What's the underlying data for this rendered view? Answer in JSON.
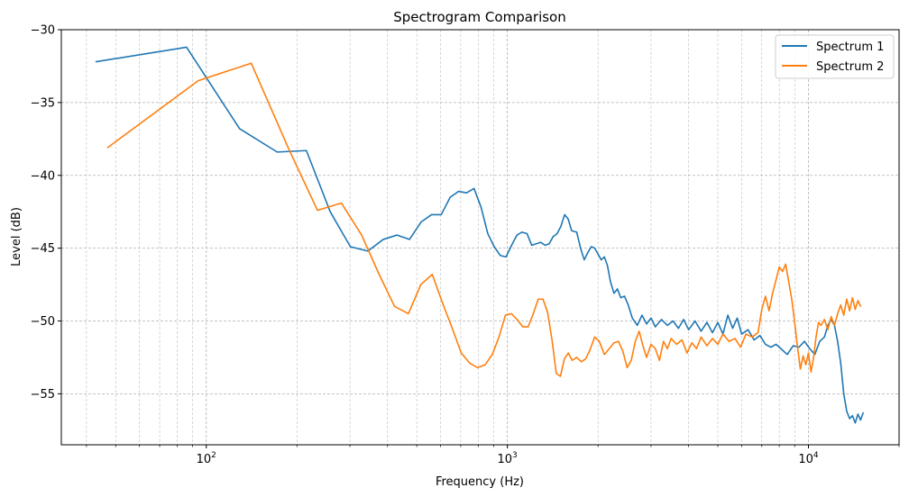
{
  "chart_data": {
    "type": "line",
    "title": "Spectrogram Comparison",
    "xlabel": "Frequency (Hz)",
    "ylabel": "Level (dB)",
    "xscale": "log",
    "xlim": [
      33,
      20000
    ],
    "ylim": [
      -58.5,
      -30
    ],
    "grid": true,
    "grid_style": "dashed-major-and-minor",
    "legend_position": "top-right",
    "y_ticks": [
      -30,
      -35,
      -40,
      -45,
      -50,
      -55
    ],
    "y_tick_labels": [
      "−30",
      "−35",
      "−40",
      "−45",
      "−50",
      "−55"
    ],
    "x_ticks": [
      100,
      1000,
      10000
    ],
    "x_tick_labels": [
      {
        "base": "10",
        "exp": "2"
      },
      {
        "base": "10",
        "exp": "3"
      },
      {
        "base": "10",
        "exp": "4"
      }
    ],
    "series": [
      {
        "name": "Spectrum 1",
        "color": "#1f77b4",
        "points": [
          [
            43,
            -32.2
          ],
          [
            86,
            -31.2
          ],
          [
            129,
            -36.8
          ],
          [
            172,
            -38.4
          ],
          [
            215,
            -38.3
          ],
          [
            258,
            -42.5
          ],
          [
            301,
            -44.9
          ],
          [
            344,
            -45.2
          ],
          [
            387,
            -44.4
          ],
          [
            430,
            -44.1
          ],
          [
            473,
            -44.4
          ],
          [
            517,
            -43.2
          ],
          [
            560,
            -42.7
          ],
          [
            603,
            -42.7
          ],
          [
            646,
            -41.5
          ],
          [
            689,
            -41.1
          ],
          [
            732,
            -41.2
          ],
          [
            775,
            -40.9
          ],
          [
            818,
            -42.2
          ],
          [
            861,
            -44.0
          ],
          [
            904,
            -44.9
          ],
          [
            947,
            -45.5
          ],
          [
            990,
            -45.6
          ],
          [
            1033,
            -44.8
          ],
          [
            1076,
            -44.1
          ],
          [
            1119,
            -43.9
          ],
          [
            1162,
            -44.0
          ],
          [
            1205,
            -44.8
          ],
          [
            1248,
            -44.7
          ],
          [
            1291,
            -44.6
          ],
          [
            1334,
            -44.8
          ],
          [
            1377,
            -44.7
          ],
          [
            1420,
            -44.2
          ],
          [
            1463,
            -44.0
          ],
          [
            1506,
            -43.5
          ],
          [
            1549,
            -42.7
          ],
          [
            1592,
            -43.0
          ],
          [
            1635,
            -43.8
          ],
          [
            1700,
            -43.9
          ],
          [
            1750,
            -45.0
          ],
          [
            1800,
            -45.8
          ],
          [
            1850,
            -45.3
          ],
          [
            1900,
            -44.9
          ],
          [
            1950,
            -45.0
          ],
          [
            2000,
            -45.4
          ],
          [
            2050,
            -45.8
          ],
          [
            2100,
            -45.6
          ],
          [
            2150,
            -46.2
          ],
          [
            2200,
            -47.3
          ],
          [
            2260,
            -48.1
          ],
          [
            2320,
            -47.8
          ],
          [
            2380,
            -48.4
          ],
          [
            2450,
            -48.3
          ],
          [
            2520,
            -48.9
          ],
          [
            2600,
            -49.8
          ],
          [
            2700,
            -50.3
          ],
          [
            2800,
            -49.6
          ],
          [
            2900,
            -50.2
          ],
          [
            3000,
            -49.8
          ],
          [
            3100,
            -50.4
          ],
          [
            3250,
            -49.9
          ],
          [
            3400,
            -50.3
          ],
          [
            3550,
            -50.0
          ],
          [
            3700,
            -50.5
          ],
          [
            3850,
            -49.9
          ],
          [
            4000,
            -50.6
          ],
          [
            4200,
            -50.0
          ],
          [
            4400,
            -50.7
          ],
          [
            4600,
            -50.1
          ],
          [
            4800,
            -50.8
          ],
          [
            5000,
            -50.1
          ],
          [
            5200,
            -50.9
          ],
          [
            5400,
            -49.6
          ],
          [
            5600,
            -50.5
          ],
          [
            5800,
            -49.8
          ],
          [
            6000,
            -50.9
          ],
          [
            6300,
            -50.6
          ],
          [
            6600,
            -51.3
          ],
          [
            6900,
            -51.0
          ],
          [
            7200,
            -51.6
          ],
          [
            7500,
            -51.8
          ],
          [
            7800,
            -51.6
          ],
          [
            8100,
            -51.9
          ],
          [
            8500,
            -52.3
          ],
          [
            8900,
            -51.7
          ],
          [
            9300,
            -51.8
          ],
          [
            9700,
            -51.4
          ],
          [
            10100,
            -51.9
          ],
          [
            10500,
            -52.3
          ],
          [
            10900,
            -51.4
          ],
          [
            11300,
            -51.1
          ],
          [
            11600,
            -50.3
          ],
          [
            11900,
            -49.9
          ],
          [
            12200,
            -50.3
          ],
          [
            12500,
            -51.4
          ],
          [
            12800,
            -52.9
          ],
          [
            13100,
            -55.0
          ],
          [
            13400,
            -56.2
          ],
          [
            13700,
            -56.7
          ],
          [
            14000,
            -56.5
          ],
          [
            14300,
            -57.0
          ],
          [
            14600,
            -56.4
          ],
          [
            14900,
            -56.8
          ],
          [
            15200,
            -56.3
          ]
        ]
      },
      {
        "name": "Spectrum 2",
        "color": "#ff7f0e",
        "points": [
          [
            47,
            -38.1
          ],
          [
            94,
            -33.5
          ],
          [
            141,
            -32.3
          ],
          [
            188,
            -38.2
          ],
          [
            234,
            -42.4
          ],
          [
            281,
            -41.9
          ],
          [
            328,
            -44.1
          ],
          [
            375,
            -46.8
          ],
          [
            422,
            -49.0
          ],
          [
            469,
            -49.5
          ],
          [
            516,
            -47.5
          ],
          [
            563,
            -46.8
          ],
          [
            610,
            -48.8
          ],
          [
            656,
            -50.5
          ],
          [
            703,
            -52.2
          ],
          [
            750,
            -52.9
          ],
          [
            797,
            -53.2
          ],
          [
            844,
            -53.0
          ],
          [
            891,
            -52.3
          ],
          [
            938,
            -51.1
          ],
          [
            985,
            -49.6
          ],
          [
            1032,
            -49.5
          ],
          [
            1078,
            -49.9
          ],
          [
            1125,
            -50.4
          ],
          [
            1172,
            -50.4
          ],
          [
            1219,
            -49.5
          ],
          [
            1266,
            -48.5
          ],
          [
            1313,
            -48.5
          ],
          [
            1360,
            -49.4
          ],
          [
            1407,
            -51.3
          ],
          [
            1454,
            -53.6
          ],
          [
            1500,
            -53.8
          ],
          [
            1547,
            -52.6
          ],
          [
            1594,
            -52.2
          ],
          [
            1641,
            -52.7
          ],
          [
            1700,
            -52.5
          ],
          [
            1760,
            -52.8
          ],
          [
            1820,
            -52.6
          ],
          [
            1880,
            -52.0
          ],
          [
            1950,
            -51.1
          ],
          [
            2020,
            -51.4
          ],
          [
            2100,
            -52.3
          ],
          [
            2180,
            -51.9
          ],
          [
            2260,
            -51.5
          ],
          [
            2340,
            -51.4
          ],
          [
            2420,
            -52.1
          ],
          [
            2500,
            -53.2
          ],
          [
            2580,
            -52.7
          ],
          [
            2660,
            -51.4
          ],
          [
            2740,
            -50.7
          ],
          [
            2820,
            -51.7
          ],
          [
            2900,
            -52.5
          ],
          [
            3000,
            -51.6
          ],
          [
            3100,
            -51.9
          ],
          [
            3200,
            -52.7
          ],
          [
            3300,
            -51.4
          ],
          [
            3400,
            -51.9
          ],
          [
            3500,
            -51.2
          ],
          [
            3650,
            -51.6
          ],
          [
            3800,
            -51.3
          ],
          [
            3950,
            -52.2
          ],
          [
            4100,
            -51.5
          ],
          [
            4250,
            -51.9
          ],
          [
            4400,
            -51.1
          ],
          [
            4600,
            -51.7
          ],
          [
            4800,
            -51.2
          ],
          [
            5000,
            -51.6
          ],
          [
            5200,
            -50.9
          ],
          [
            5450,
            -51.4
          ],
          [
            5700,
            -51.2
          ],
          [
            5950,
            -51.8
          ],
          [
            6200,
            -50.9
          ],
          [
            6500,
            -51.1
          ],
          [
            6800,
            -50.8
          ],
          [
            7000,
            -49.2
          ],
          [
            7200,
            -48.3
          ],
          [
            7400,
            -49.3
          ],
          [
            7600,
            -48.1
          ],
          [
            7800,
            -47.2
          ],
          [
            8000,
            -46.3
          ],
          [
            8200,
            -46.6
          ],
          [
            8400,
            -46.1
          ],
          [
            8600,
            -47.3
          ],
          [
            8800,
            -48.5
          ],
          [
            9000,
            -50.1
          ],
          [
            9200,
            -51.8
          ],
          [
            9400,
            -53.3
          ],
          [
            9600,
            -52.4
          ],
          [
            9800,
            -53.0
          ],
          [
            10000,
            -52.2
          ],
          [
            10200,
            -53.5
          ],
          [
            10400,
            -52.5
          ],
          [
            10600,
            -51.1
          ],
          [
            10800,
            -50.1
          ],
          [
            11000,
            -50.3
          ],
          [
            11300,
            -49.9
          ],
          [
            11600,
            -50.6
          ],
          [
            11900,
            -49.7
          ],
          [
            12200,
            -50.3
          ],
          [
            12500,
            -49.5
          ],
          [
            12800,
            -48.9
          ],
          [
            13100,
            -49.6
          ],
          [
            13400,
            -48.5
          ],
          [
            13700,
            -49.3
          ],
          [
            14000,
            -48.4
          ],
          [
            14300,
            -49.2
          ],
          [
            14600,
            -48.6
          ],
          [
            14900,
            -49.0
          ]
        ]
      }
    ]
  }
}
